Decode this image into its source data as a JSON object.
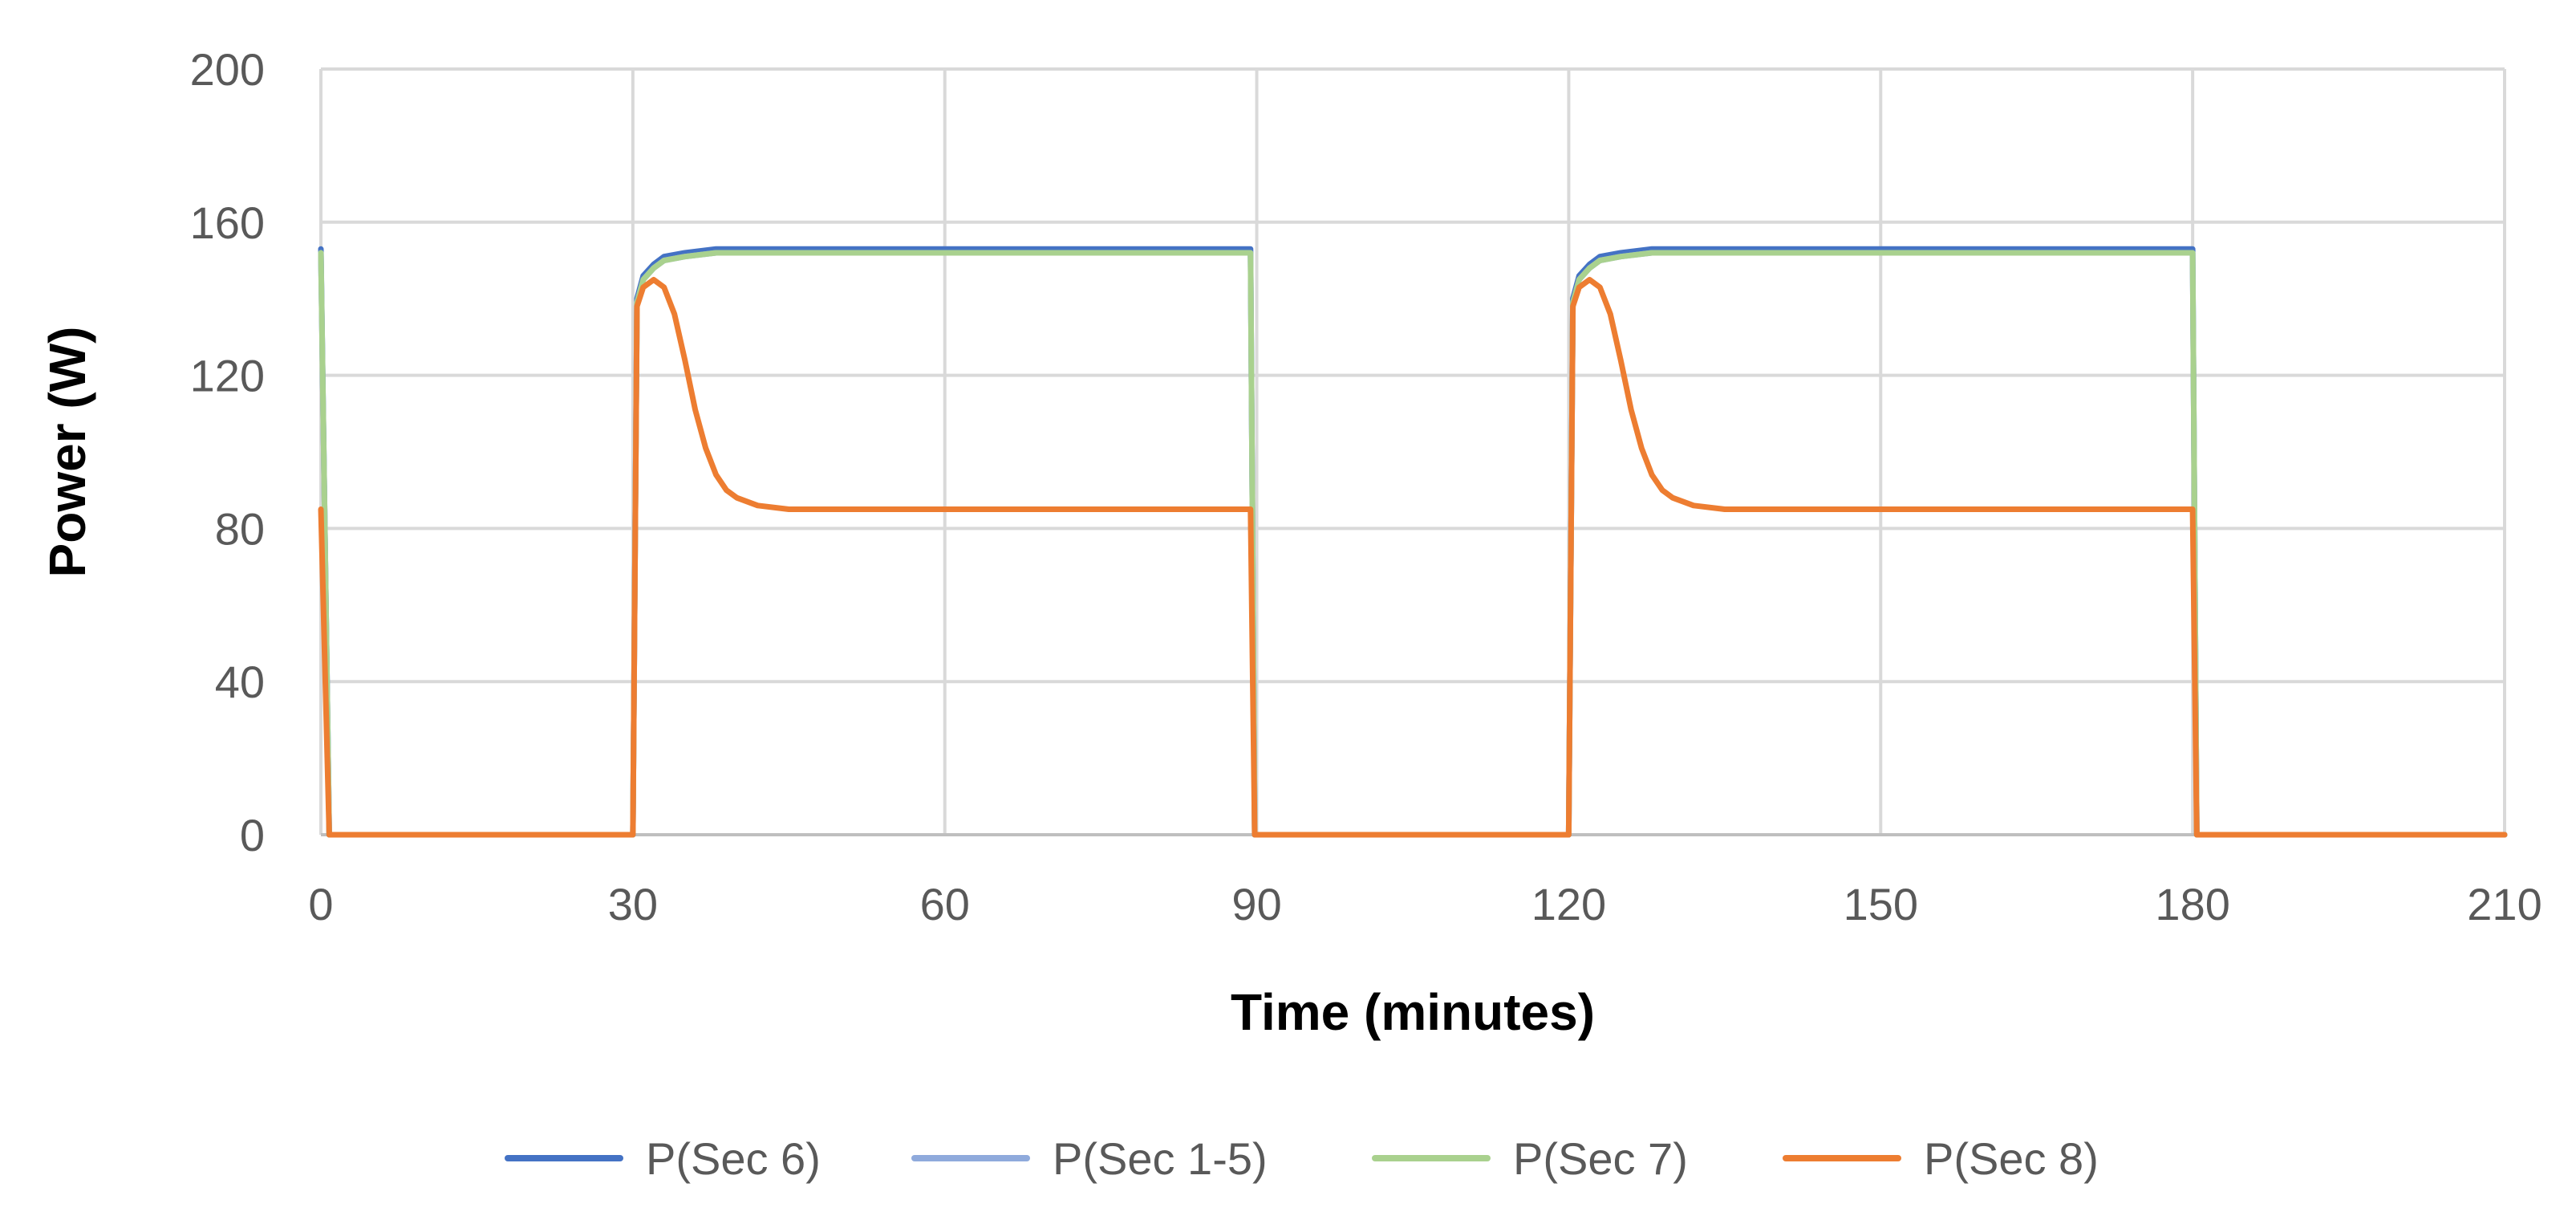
{
  "chart_data": {
    "type": "line",
    "title": "",
    "xlabel": "Time (minutes)",
    "ylabel": "Power (W)",
    "xlim": [
      0,
      210
    ],
    "ylim": [
      0,
      200
    ],
    "xticks": [
      0,
      30,
      60,
      90,
      120,
      150,
      180,
      210
    ],
    "yticks": [
      0,
      40,
      80,
      120,
      160,
      200
    ],
    "grid": true,
    "legend_position": "bottom",
    "series": [
      {
        "name": "P(Sec 6)",
        "color": "#4472C4",
        "points": [
          [
            0,
            153
          ],
          [
            0.8,
            0
          ],
          [
            30,
            0
          ],
          [
            30.4,
            140
          ],
          [
            31,
            146
          ],
          [
            32,
            149
          ],
          [
            33,
            151
          ],
          [
            35,
            152
          ],
          [
            38,
            153
          ],
          [
            89,
            153
          ],
          [
            89.4,
            153
          ],
          [
            89.8,
            0
          ],
          [
            120,
            0
          ],
          [
            120.4,
            140
          ],
          [
            121,
            146
          ],
          [
            122,
            149
          ],
          [
            123,
            151
          ],
          [
            125,
            152
          ],
          [
            128,
            153
          ],
          [
            179.5,
            153
          ],
          [
            180,
            153
          ],
          [
            180.4,
            0
          ],
          [
            210,
            0
          ]
        ]
      },
      {
        "name": "P(Sec 1-5)",
        "color": "#8FAADC",
        "points": [
          [
            0,
            152
          ],
          [
            0.8,
            0
          ],
          [
            30,
            0
          ],
          [
            30.4,
            139
          ],
          [
            31,
            145
          ],
          [
            32,
            148
          ],
          [
            33,
            150
          ],
          [
            35,
            151
          ],
          [
            38,
            152
          ],
          [
            89,
            152
          ],
          [
            89.4,
            152
          ],
          [
            89.8,
            0
          ],
          [
            120,
            0
          ],
          [
            120.4,
            139
          ],
          [
            121,
            145
          ],
          [
            122,
            148
          ],
          [
            123,
            150
          ],
          [
            125,
            151
          ],
          [
            128,
            152
          ],
          [
            179.5,
            152
          ],
          [
            180,
            152
          ],
          [
            180.4,
            0
          ],
          [
            210,
            0
          ]
        ]
      },
      {
        "name": "P(Sec 7)",
        "color": "#A9D18E",
        "points": [
          [
            0,
            152
          ],
          [
            0.8,
            0
          ],
          [
            30,
            0
          ],
          [
            30.4,
            139
          ],
          [
            31,
            145
          ],
          [
            32,
            148
          ],
          [
            33,
            150
          ],
          [
            35,
            151
          ],
          [
            38,
            152
          ],
          [
            89,
            152
          ],
          [
            89.4,
            152
          ],
          [
            89.8,
            0
          ],
          [
            120,
            0
          ],
          [
            120.4,
            139
          ],
          [
            121,
            145
          ],
          [
            122,
            148
          ],
          [
            123,
            150
          ],
          [
            125,
            151
          ],
          [
            128,
            152
          ],
          [
            179.5,
            152
          ],
          [
            180,
            152
          ],
          [
            180.4,
            0
          ],
          [
            210,
            0
          ]
        ]
      },
      {
        "name": "P(Sec 8)",
        "color": "#ED7D31",
        "points": [
          [
            0,
            85
          ],
          [
            0.8,
            0
          ],
          [
            30,
            0
          ],
          [
            30.4,
            138
          ],
          [
            31,
            143
          ],
          [
            32,
            145
          ],
          [
            33,
            143
          ],
          [
            34,
            136
          ],
          [
            35,
            124
          ],
          [
            36,
            111
          ],
          [
            37,
            101
          ],
          [
            38,
            94
          ],
          [
            39,
            90
          ],
          [
            40,
            88
          ],
          [
            42,
            86
          ],
          [
            45,
            85
          ],
          [
            50,
            85
          ],
          [
            89,
            85
          ],
          [
            89.4,
            85
          ],
          [
            89.8,
            0
          ],
          [
            120,
            0
          ],
          [
            120.4,
            138
          ],
          [
            121,
            143
          ],
          [
            122,
            145
          ],
          [
            123,
            143
          ],
          [
            124,
            136
          ],
          [
            125,
            124
          ],
          [
            126,
            111
          ],
          [
            127,
            101
          ],
          [
            128,
            94
          ],
          [
            129,
            90
          ],
          [
            130,
            88
          ],
          [
            132,
            86
          ],
          [
            135,
            85
          ],
          [
            140,
            85
          ],
          [
            179.5,
            85
          ],
          [
            180,
            85
          ],
          [
            180.4,
            0
          ],
          [
            210,
            0
          ]
        ]
      }
    ]
  }
}
